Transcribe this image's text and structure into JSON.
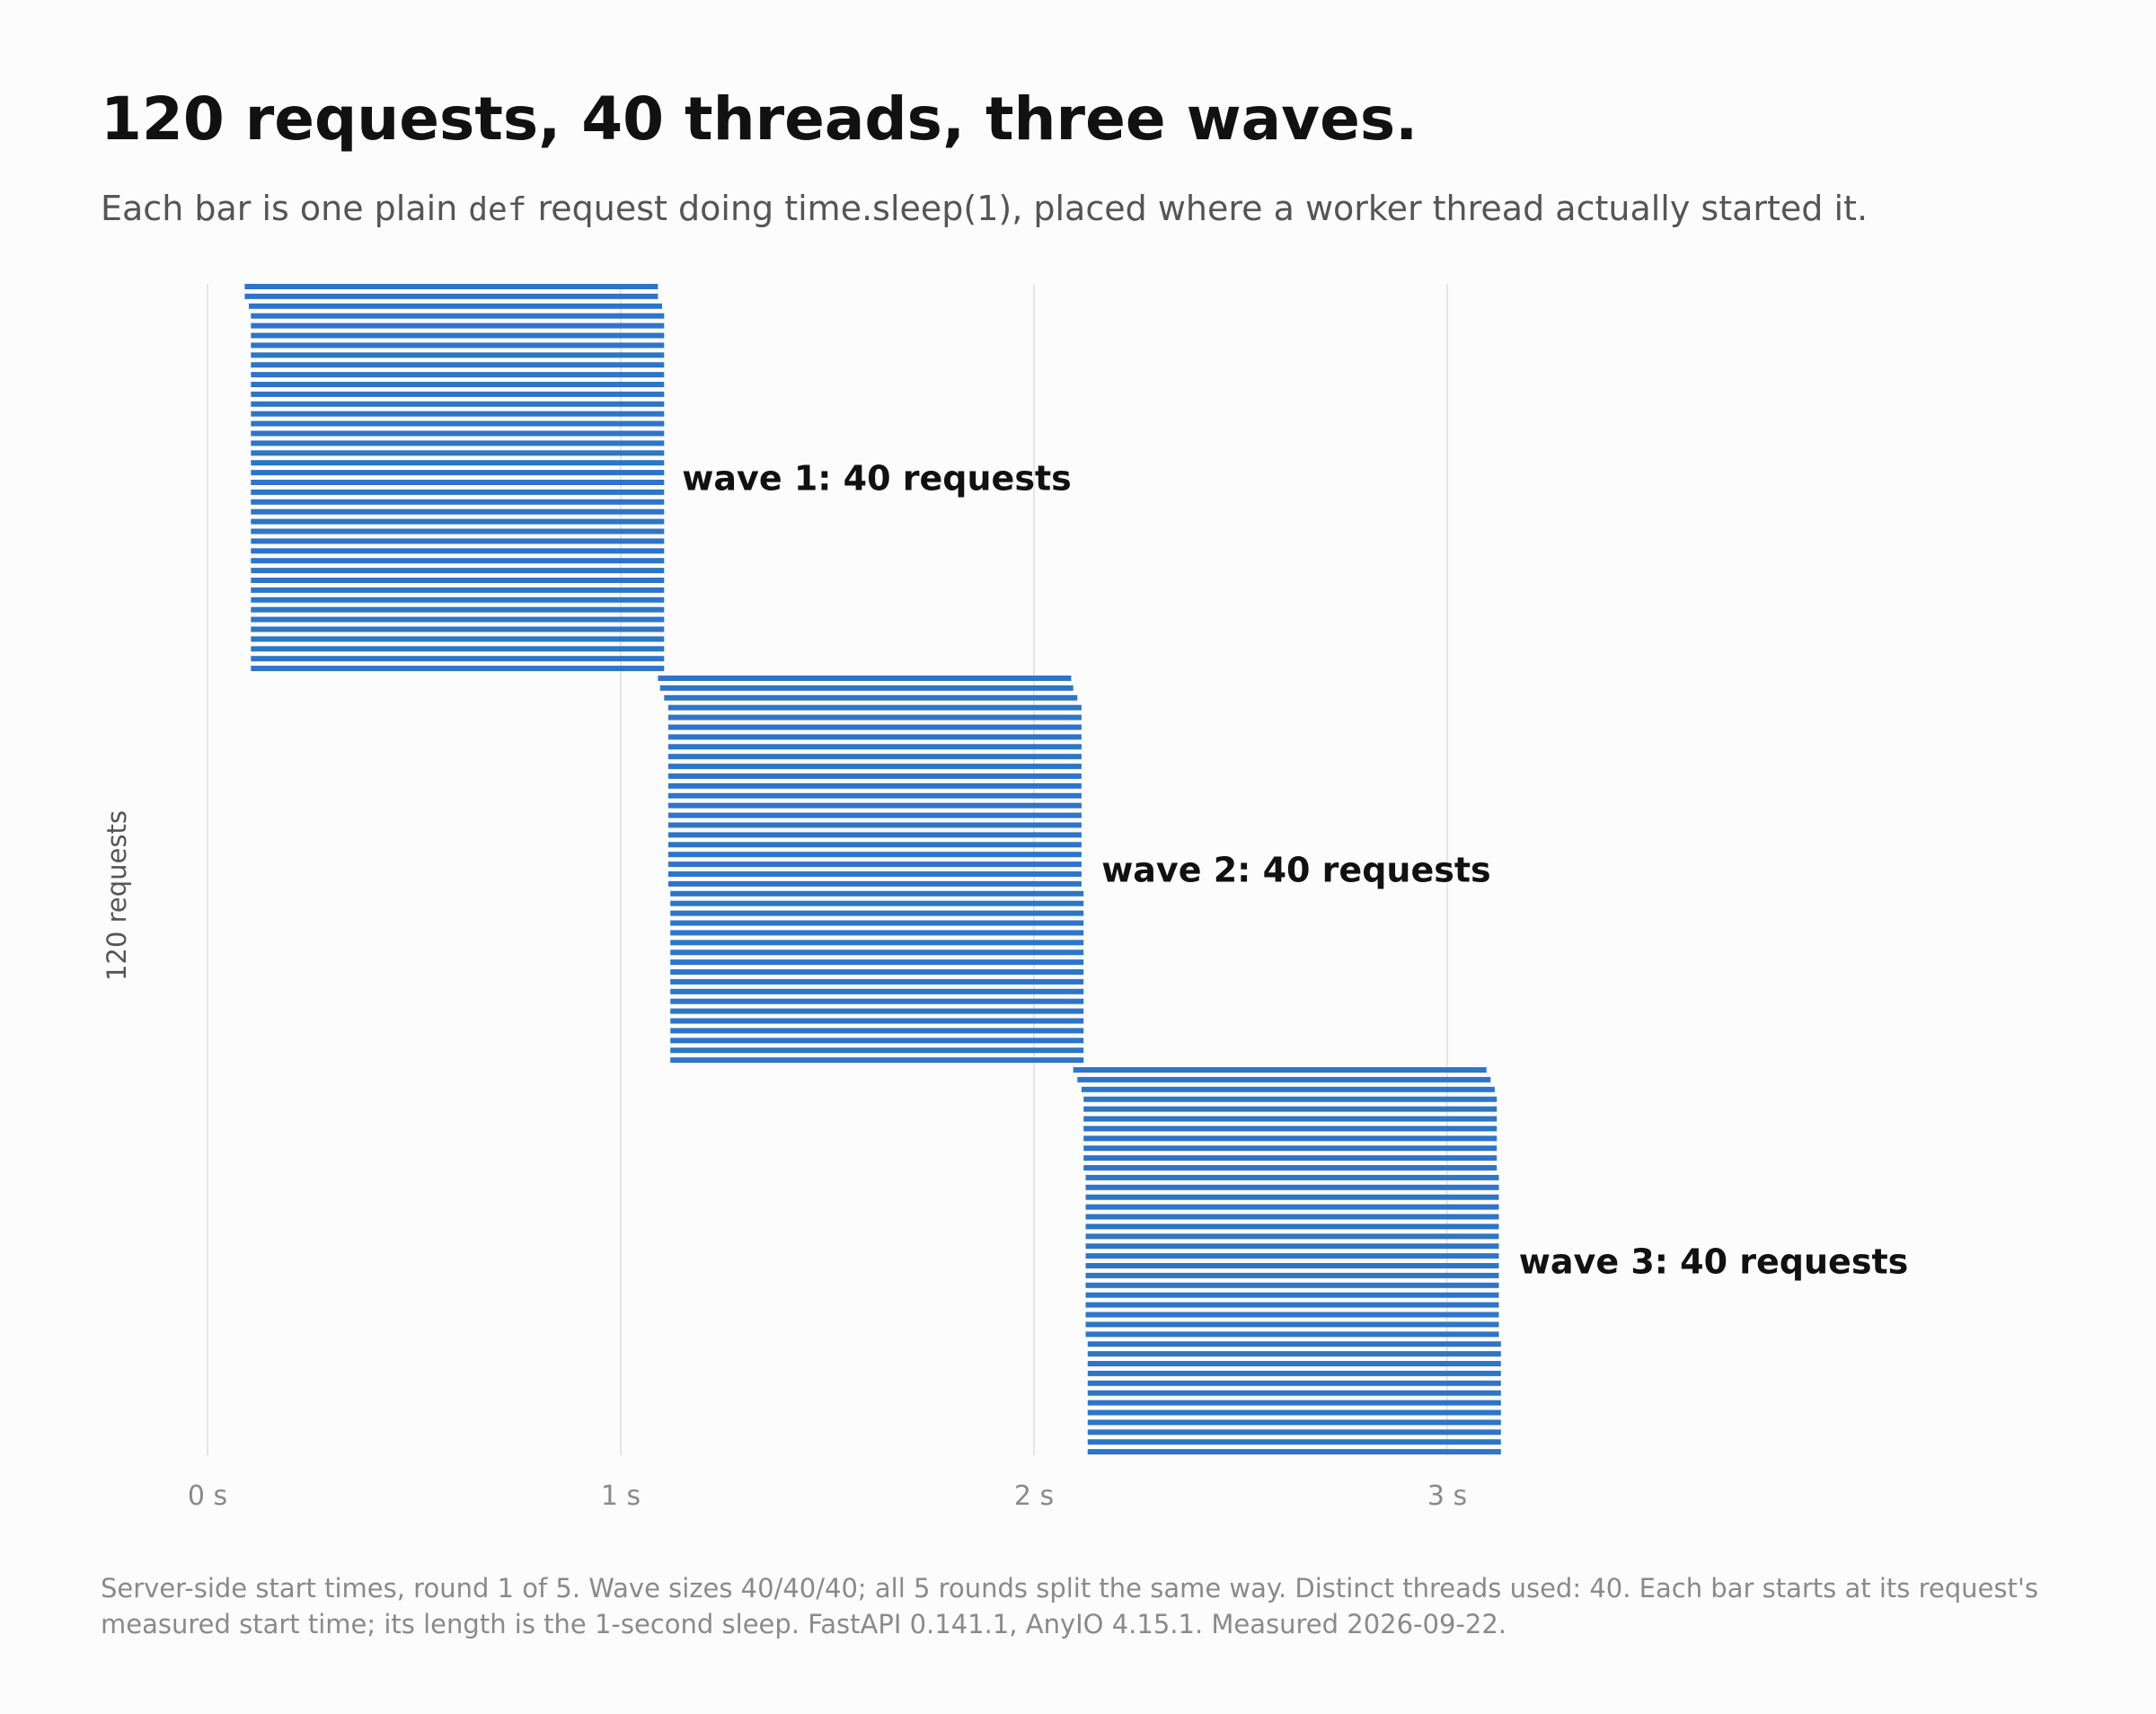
{
  "header": {
    "title": "120 requests, 40 threads, three waves.",
    "subtitle_before": "Each bar is one plain ",
    "subtitle_code": "def",
    "subtitle_after": " request doing time.sleep(1), placed where a worker thread actually started it."
  },
  "footnote": "Server-side start times, round 1 of 5. Wave sizes 40/40/40; all 5 rounds split the same way. Distinct threads used: 40. Each bar starts at its request's measured start time; its length is the 1-second sleep. FastAPI 0.141.1, AnyIO 4.15.1. Measured 2026-09-22.",
  "chart_data": {
    "type": "bar",
    "orientation": "horizontal",
    "ylabel": "120 requests",
    "xlim": [
      0,
      4.2
    ],
    "x_ticks": [
      {
        "value": 0,
        "label": "0 s"
      },
      {
        "value": 1,
        "label": "1 s"
      },
      {
        "value": 2,
        "label": "2 s"
      },
      {
        "value": 3,
        "label": "3 s"
      }
    ],
    "grid": "vertical",
    "bar_color": "#2e75c8",
    "bar_duration": 1.0,
    "waves": [
      {
        "label": "wave 1: 40 requests",
        "starts": [
          0.09,
          0.09,
          0.1,
          0.105,
          0.105,
          0.105,
          0.105,
          0.105,
          0.105,
          0.105,
          0.105,
          0.105,
          0.105,
          0.105,
          0.105,
          0.105,
          0.105,
          0.105,
          0.105,
          0.105,
          0.105,
          0.105,
          0.105,
          0.105,
          0.105,
          0.105,
          0.105,
          0.105,
          0.105,
          0.105,
          0.105,
          0.105,
          0.105,
          0.105,
          0.105,
          0.105,
          0.105,
          0.105,
          0.105,
          0.105
        ]
      },
      {
        "label": "wave 2: 40 requests",
        "starts": [
          1.09,
          1.095,
          1.105,
          1.115,
          1.115,
          1.115,
          1.115,
          1.115,
          1.115,
          1.115,
          1.115,
          1.115,
          1.115,
          1.115,
          1.115,
          1.115,
          1.115,
          1.115,
          1.115,
          1.115,
          1.115,
          1.115,
          1.12,
          1.12,
          1.12,
          1.12,
          1.12,
          1.12,
          1.12,
          1.12,
          1.12,
          1.12,
          1.12,
          1.12,
          1.12,
          1.12,
          1.12,
          1.12,
          1.12,
          1.12
        ]
      },
      {
        "label": "wave 3: 40 requests",
        "starts": [
          2.095,
          2.105,
          2.115,
          2.12,
          2.12,
          2.12,
          2.12,
          2.12,
          2.12,
          2.12,
          2.12,
          2.125,
          2.125,
          2.125,
          2.125,
          2.125,
          2.125,
          2.125,
          2.125,
          2.125,
          2.125,
          2.125,
          2.125,
          2.125,
          2.125,
          2.125,
          2.125,
          2.125,
          2.13,
          2.13,
          2.13,
          2.13,
          2.13,
          2.13,
          2.13,
          2.13,
          2.13,
          2.13,
          2.13,
          2.13
        ]
      }
    ]
  }
}
